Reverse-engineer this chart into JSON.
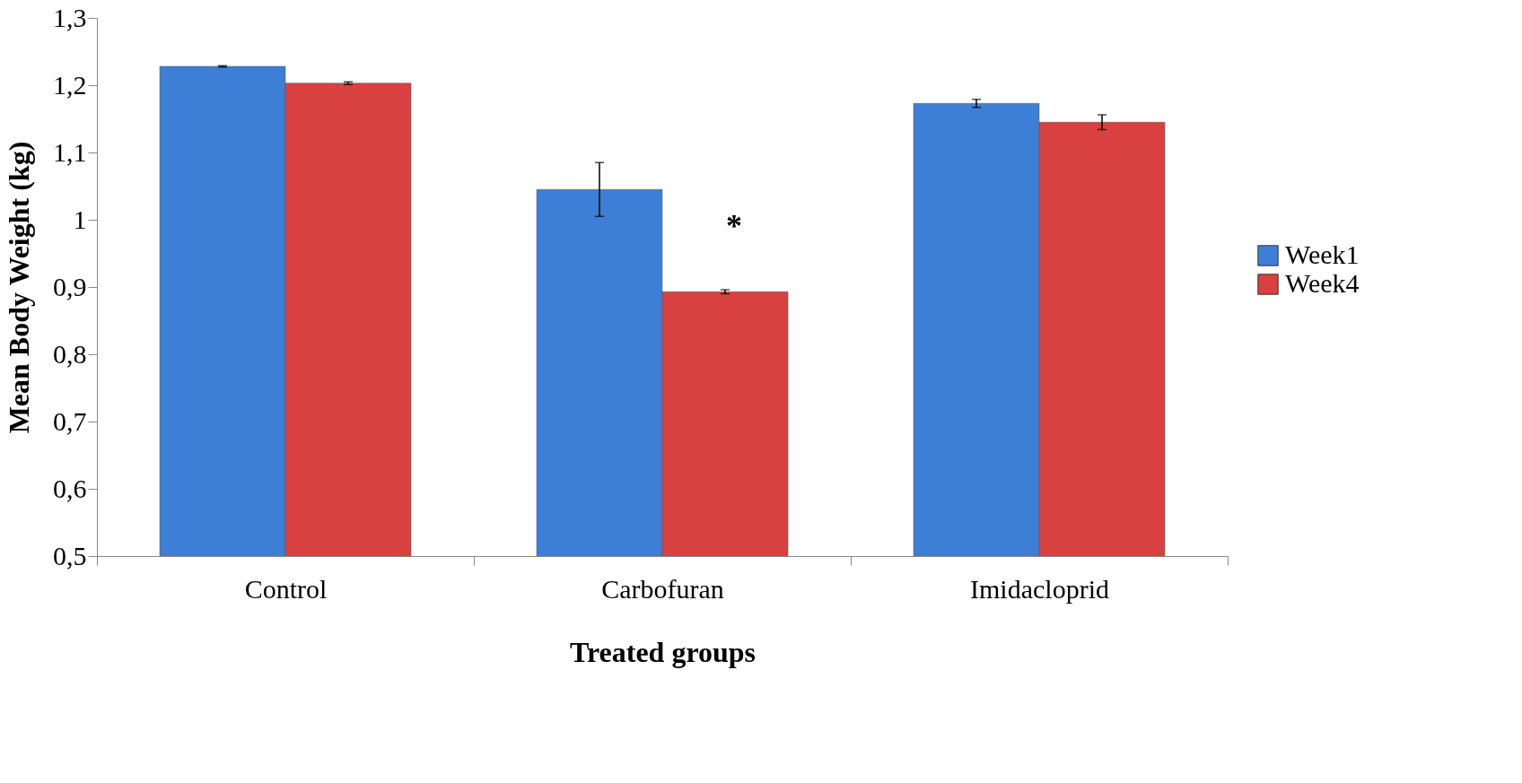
{
  "chart_data": {
    "type": "bar",
    "xlabel": "Treated groups",
    "ylabel": "Mean Body Weight (kg)",
    "categories": [
      "Control",
      "Carbofuran",
      "Imidacloprid"
    ],
    "series": [
      {
        "name": "Week1",
        "color": "#3d7fd6",
        "values": [
          1.228,
          1.045,
          1.173
        ],
        "errors": [
          0.001,
          0.04,
          0.006
        ]
      },
      {
        "name": "Week4",
        "color": "#d94040",
        "values": [
          1.203,
          0.893,
          1.145
        ],
        "errors": [
          0.002,
          0.003,
          0.011
        ]
      }
    ],
    "ylim": [
      0.5,
      1.3
    ],
    "yticks": [
      {
        "value": 0.5,
        "label": "0,5"
      },
      {
        "value": 0.6,
        "label": "0,6"
      },
      {
        "value": 0.7,
        "label": "0,7"
      },
      {
        "value": 0.8,
        "label": "0,8"
      },
      {
        "value": 0.9,
        "label": "0,9"
      },
      1,
      {
        "value": 1.1,
        "label": "1,1"
      },
      {
        "value": 1.2,
        "label": "1,2"
      },
      {
        "value": 1.3,
        "label": "1,3"
      }
    ],
    "annotations": [
      {
        "text": "*",
        "x": "Carbofuran",
        "y": 0.99
      }
    ],
    "legend": "right",
    "grid": false
  }
}
